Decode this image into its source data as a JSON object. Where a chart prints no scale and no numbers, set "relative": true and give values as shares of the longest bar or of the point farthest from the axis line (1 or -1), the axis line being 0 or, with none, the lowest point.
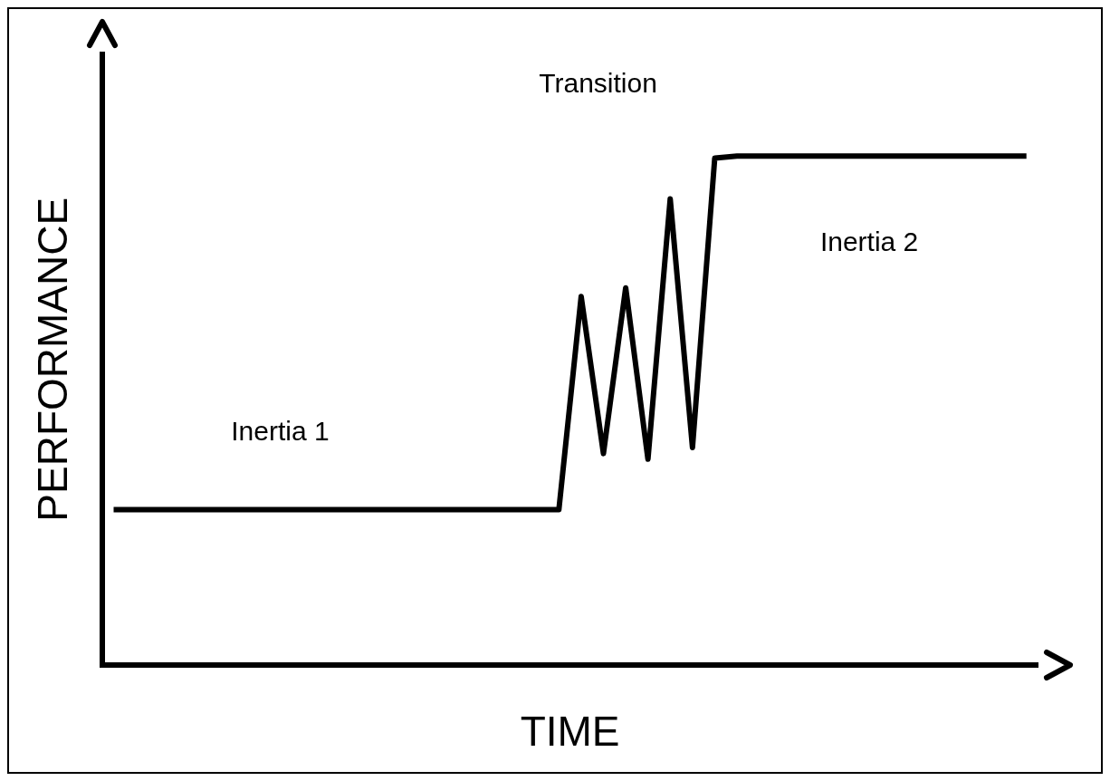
{
  "chart_data": {
    "type": "line",
    "relative": true,
    "xlabel": "TIME",
    "ylabel": "PERFORMANCE",
    "color": "#000000",
    "marker": "none",
    "line_style": "solid",
    "grid": false,
    "legend": false,
    "categories": [
      null,
      null,
      null,
      null,
      null,
      null,
      null,
      null,
      null,
      null,
      null,
      null,
      null,
      null,
      null,
      null,
      null,
      null,
      null,
      null,
      null,
      null,
      null,
      null,
      null,
      null,
      null,
      null,
      null,
      null,
      null,
      null,
      null,
      null,
      null,
      null,
      null,
      null,
      null,
      null,
      null,
      null
    ],
    "values": [
      0.305,
      0.305,
      0.305,
      0.305,
      0.305,
      0.305,
      0.305,
      0.305,
      0.305,
      0.305,
      0.305,
      0.305,
      0.305,
      0.305,
      0.305,
      0.305,
      0.305,
      0.305,
      0.305,
      0.305,
      0.305,
      0.724,
      0.415,
      0.741,
      0.404,
      0.916,
      0.427,
      0.996,
      1,
      1,
      1,
      1,
      1,
      1,
      1,
      1,
      1,
      1,
      1,
      1,
      1,
      1
    ],
    "annotations": [
      "Inertia 1",
      "Transition",
      "Inertia 2"
    ]
  }
}
